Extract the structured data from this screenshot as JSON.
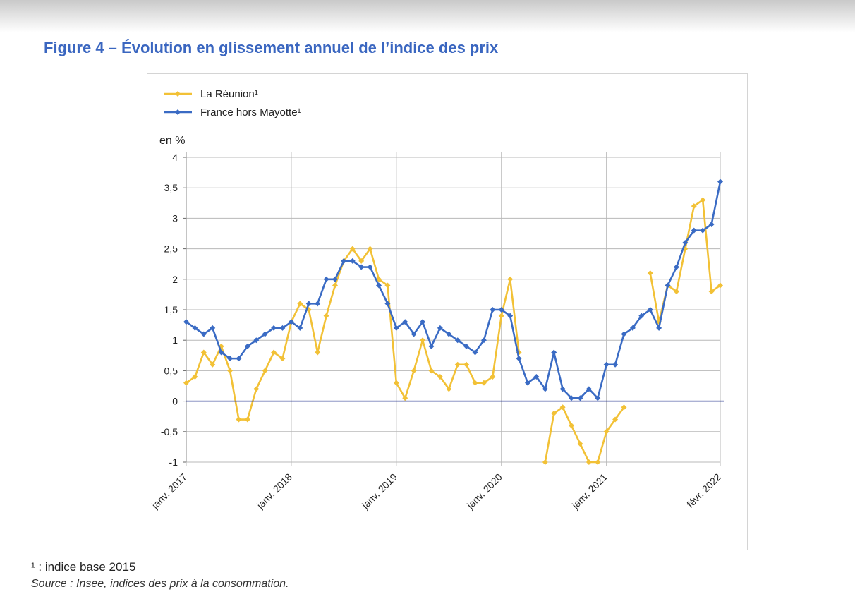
{
  "header": {
    "title": "Figure 4 – Évolution en glissement annuel de l’indice des prix"
  },
  "footer": {
    "footnote": "¹ : indice base 2015",
    "source": "Source : Insee, indices des prix à la consommation."
  },
  "colors": {
    "reunion": "#f2c136",
    "france": "#3a6bc4",
    "zero_line": "#1f2f8c",
    "grid": "#b8b8b8",
    "title": "#3a66c0"
  },
  "chart_data": {
    "type": "line",
    "title": "Figure 4 – Évolution en glissement annuel de l’indice des prix",
    "ylabel": "en %",
    "xlabel": "",
    "ylim": [
      -1,
      4
    ],
    "yticks": [
      -1,
      -0.5,
      0,
      0.5,
      1,
      1.5,
      2,
      2.5,
      3,
      3.5,
      4
    ],
    "ytick_labels": [
      "-1",
      "-0,5",
      "0",
      "0,5",
      "1",
      "1,5",
      "2",
      "2,5",
      "3",
      "3,5",
      "4"
    ],
    "n_points": 62,
    "x_ticks": [
      {
        "index": 0,
        "label": "janv. 2017"
      },
      {
        "index": 12,
        "label": "janv. 2018"
      },
      {
        "index": 24,
        "label": "janv. 2019"
      },
      {
        "index": 36,
        "label": "janv. 2020"
      },
      {
        "index": 48,
        "label": "janv. 2021"
      },
      {
        "index": 61,
        "label": "févr. 2022"
      }
    ],
    "legend_position": "top-left",
    "series": [
      {
        "name": "La Réunion¹",
        "color": "#f2c136",
        "values": [
          0.3,
          0.4,
          0.8,
          0.6,
          0.9,
          0.5,
          -0.3,
          -0.3,
          0.2,
          0.5,
          0.8,
          0.7,
          1.3,
          1.6,
          1.5,
          0.8,
          1.4,
          1.9,
          2.3,
          2.5,
          2.3,
          2.5,
          2.0,
          1.9,
          0.3,
          0.05,
          0.5,
          1.0,
          0.5,
          0.4,
          0.2,
          0.6,
          0.6,
          0.3,
          0.3,
          0.4,
          1.4,
          2.0,
          0.8,
          null,
          null,
          -1.0,
          -0.2,
          -0.1,
          -0.4,
          -0.7,
          -1.0,
          -1.0,
          -0.5,
          -0.3,
          -0.1,
          null,
          null,
          2.1,
          1.3,
          1.9,
          1.8,
          2.5,
          3.2,
          3.3,
          1.8,
          1.9
        ]
      },
      {
        "name": "France hors Mayotte¹",
        "color": "#3a6bc4",
        "values": [
          1.3,
          1.2,
          1.1,
          1.2,
          0.8,
          0.7,
          0.7,
          0.9,
          1.0,
          1.1,
          1.2,
          1.2,
          1.3,
          1.2,
          1.6,
          1.6,
          2.0,
          2.0,
          2.3,
          2.3,
          2.2,
          2.2,
          1.9,
          1.6,
          1.2,
          1.3,
          1.1,
          1.3,
          0.9,
          1.2,
          1.1,
          1.0,
          0.9,
          0.8,
          1.0,
          1.5,
          1.5,
          1.4,
          0.7,
          0.3,
          0.4,
          0.2,
          0.8,
          0.2,
          0.05,
          0.05,
          0.2,
          0.05,
          0.6,
          0.6,
          1.1,
          1.2,
          1.4,
          1.5,
          1.2,
          1.9,
          2.2,
          2.6,
          2.8,
          2.8,
          2.9,
          3.6
        ]
      }
    ]
  }
}
